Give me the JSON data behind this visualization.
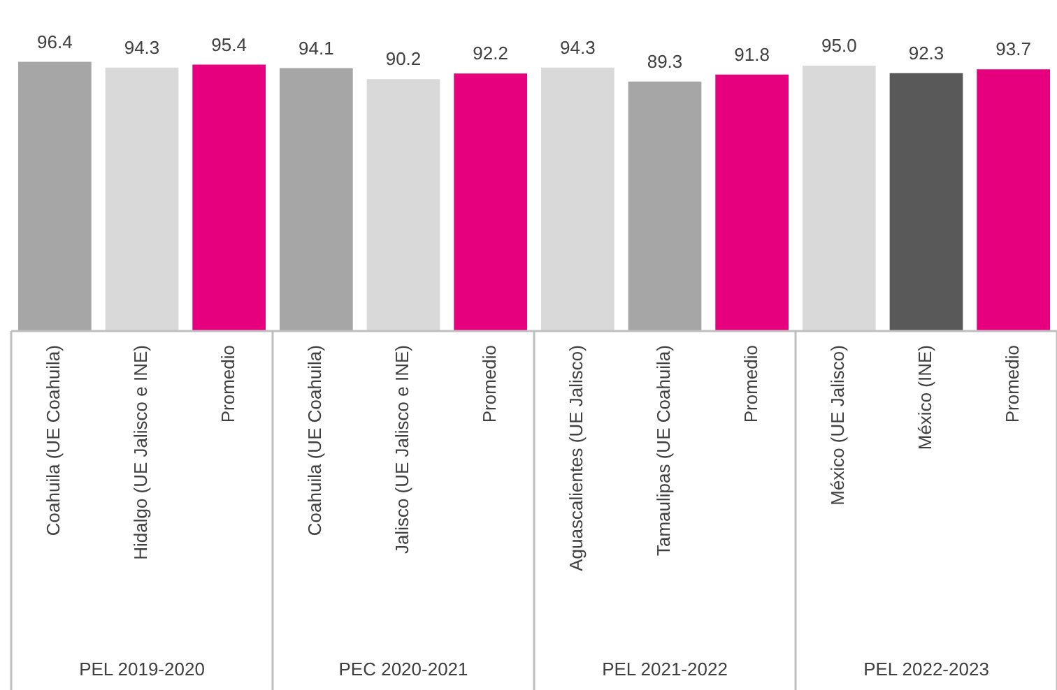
{
  "chart_data": {
    "type": "bar",
    "categories": [
      "Coahuila (UE Coahuila)",
      "Hidalgo (UE Jalisco e INE)",
      "Promedio",
      "Coahuila (UE Coahuila)",
      "Jalisco (UE Jalisco e INE)",
      "Promedio",
      "Aguascalientes (UE Jalisco)",
      "Tamaulipas (UE Coahuila)",
      "Promedio",
      "México (UE Jalisco)",
      "México (INE)",
      "Promedio"
    ],
    "values": [
      96.4,
      94.3,
      95.4,
      94.1,
      90.2,
      92.2,
      94.3,
      89.3,
      91.8,
      95.0,
      92.3,
      93.7
    ],
    "value_labels": [
      "96.4",
      "94.3",
      "95.4",
      "94.1",
      "90.2",
      "92.2",
      "94.3",
      "89.3",
      "91.8",
      "95.0",
      "92.3",
      "93.7"
    ],
    "colors": [
      "#a6a6a6",
      "#d9d9d9",
      "#e6007e",
      "#a6a6a6",
      "#d9d9d9",
      "#e6007e",
      "#d9d9d9",
      "#a6a6a6",
      "#e6007e",
      "#d9d9d9",
      "#595959",
      "#e6007e"
    ],
    "annotations": [
      "PEL 2019-2020",
      "PEC 2020-2021",
      "PEL 2021-2022",
      "PEL 2022-2023"
    ],
    "grid": false,
    "legend": false
  }
}
